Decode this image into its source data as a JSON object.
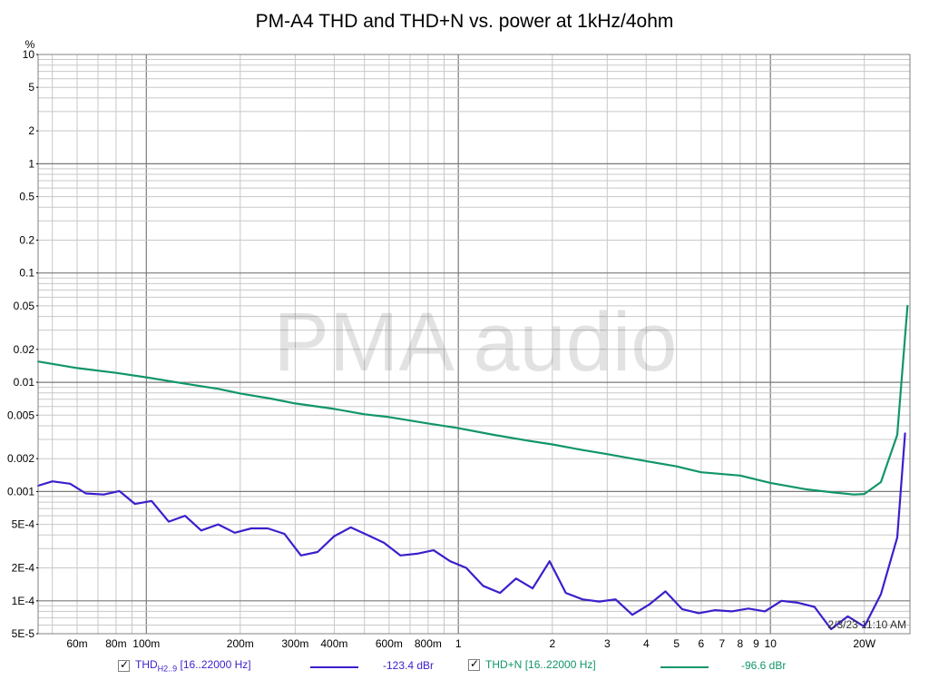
{
  "chart_data": {
    "type": "line",
    "title": "PM-A4 THD and THD+N vs. power at 1kHz/4ohm",
    "xlabel": "",
    "ylabel": "%",
    "x_scale": "log",
    "y_scale": "log",
    "xlim": [
      0.045,
      28
    ],
    "ylim": [
      5e-05,
      10
    ],
    "grid": true,
    "watermark": "PMA audio",
    "timestamp": "2/3/23 11:10 AM",
    "x_ticks": [
      {
        "value": 0.06,
        "label": "60m"
      },
      {
        "value": 0.08,
        "label": "80m"
      },
      {
        "value": 0.1,
        "label": "100m"
      },
      {
        "value": 0.2,
        "label": "200m"
      },
      {
        "value": 0.3,
        "label": "300m"
      },
      {
        "value": 0.4,
        "label": "400m"
      },
      {
        "value": 0.6,
        "label": "600m"
      },
      {
        "value": 0.8,
        "label": "800m"
      },
      {
        "value": 1,
        "label": "1"
      },
      {
        "value": 2,
        "label": "2"
      },
      {
        "value": 3,
        "label": "3"
      },
      {
        "value": 4,
        "label": "4"
      },
      {
        "value": 5,
        "label": "5"
      },
      {
        "value": 6,
        "label": "6"
      },
      {
        "value": 7,
        "label": "7"
      },
      {
        "value": 8,
        "label": "8"
      },
      {
        "value": 9,
        "label": "9"
      },
      {
        "value": 10,
        "label": "10"
      },
      {
        "value": 20,
        "label": "20W"
      }
    ],
    "y_ticks": [
      {
        "value": 10,
        "label": "10"
      },
      {
        "value": 5,
        "label": "5"
      },
      {
        "value": 2,
        "label": "2"
      },
      {
        "value": 1,
        "label": "1"
      },
      {
        "value": 0.5,
        "label": "0.5"
      },
      {
        "value": 0.2,
        "label": "0.2"
      },
      {
        "value": 0.1,
        "label": "0.1"
      },
      {
        "value": 0.05,
        "label": "0.05"
      },
      {
        "value": 0.02,
        "label": "0.02"
      },
      {
        "value": 0.01,
        "label": "0.01"
      },
      {
        "value": 0.005,
        "label": "0.005"
      },
      {
        "value": 0.002,
        "label": "0.002"
      },
      {
        "value": 0.001,
        "label": "0.001"
      },
      {
        "value": 0.0005,
        "label": "5E-4"
      },
      {
        "value": 0.0002,
        "label": "2E-4"
      },
      {
        "value": 0.0001,
        "label": "1E-4"
      },
      {
        "value": 5e-05,
        "label": "5E-5"
      }
    ],
    "series": [
      {
        "name": "THD",
        "name_sub": "H2..9",
        "range": "[16..22000 Hz]",
        "reading": "-123.4 dBr",
        "color": "#3b1fcc",
        "x": [
          0.045,
          0.05,
          0.057,
          0.064,
          0.073,
          0.082,
          0.092,
          0.104,
          0.118,
          0.133,
          0.15,
          0.17,
          0.192,
          0.217,
          0.245,
          0.277,
          0.313,
          0.354,
          0.4,
          0.452,
          0.511,
          0.577,
          0.652,
          0.737,
          0.833,
          0.941,
          1.06,
          1.2,
          1.36,
          1.53,
          1.73,
          1.96,
          2.21,
          2.5,
          2.83,
          3.19,
          3.61,
          4.08,
          4.61,
          5.21,
          5.89,
          6.65,
          7.52,
          8.5,
          9.6,
          10.85,
          12.26,
          13.85,
          15.65,
          17.7,
          20.0,
          22.6,
          25.5,
          27.0
        ],
        "y": [
          0.00113,
          0.00124,
          0.00118,
          0.00096,
          0.00094,
          0.00101,
          0.00077,
          0.00082,
          0.00053,
          0.0006,
          0.00044,
          0.0005,
          0.00042,
          0.00046,
          0.00046,
          0.00041,
          0.00026,
          0.00028,
          0.00039,
          0.00047,
          0.0004,
          0.00034,
          0.00026,
          0.00027,
          0.00029,
          0.00023,
          0.0002,
          0.000137,
          0.000118,
          0.00016,
          0.00013,
          0.00023,
          0.000118,
          0.000103,
          9.85e-05,
          0.000103,
          7.45e-05,
          9.2e-05,
          0.000122,
          8.4e-05,
          7.7e-05,
          8.2e-05,
          8e-05,
          8.5e-05,
          8e-05,
          0.0001,
          9.6e-05,
          8.8e-05,
          5.5e-05,
          7.2e-05,
          5.8e-05,
          0.000115,
          0.00038,
          0.0034
        ]
      },
      {
        "name": "THD+N",
        "range": "[16..22000 Hz]",
        "reading": "-96.6 dBr",
        "color": "#11956b",
        "x": [
          0.045,
          0.06,
          0.08,
          0.1,
          0.13,
          0.17,
          0.2,
          0.25,
          0.3,
          0.4,
          0.5,
          0.6,
          0.8,
          1,
          1.3,
          1.7,
          2,
          2.5,
          3,
          4,
          5,
          6,
          8,
          10,
          13,
          16,
          18.5,
          20.0,
          22.6,
          25.5,
          27.5
        ],
        "y": [
          0.0155,
          0.0135,
          0.0122,
          0.0111,
          0.0098,
          0.0087,
          0.0079,
          0.0071,
          0.0064,
          0.0057,
          0.0051,
          0.0048,
          0.0042,
          0.0038,
          0.0033,
          0.0029,
          0.0027,
          0.0024,
          0.0022,
          0.0019,
          0.0017,
          0.0015,
          0.0014,
          0.0012,
          0.00105,
          0.00098,
          0.00094,
          0.00095,
          0.00122,
          0.0033,
          0.05
        ]
      }
    ]
  }
}
